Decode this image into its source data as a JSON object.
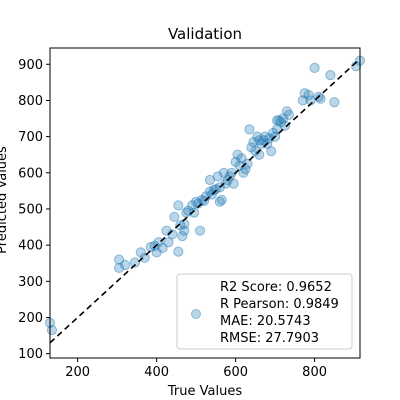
{
  "chart_data": {
    "type": "scatter",
    "title": "Validation",
    "xlabel": "True Values",
    "ylabel": "Predicted Values",
    "xlim": [
      130,
      915
    ],
    "ylim": [
      88,
      945
    ],
    "xticks": [
      200,
      400,
      600,
      800
    ],
    "yticks": [
      100,
      200,
      300,
      400,
      500,
      600,
      700,
      800,
      900
    ],
    "grid": false,
    "legend_position": "lower-right",
    "legend_lines": [
      "R2 Score: 0.9652",
      "R Pearson: 0.9849",
      "MAE: 20.5743",
      "RMSE: 27.7903"
    ],
    "point_color": "#1f77b4",
    "line_color": "#000000",
    "reference_line": {
      "label": "y = x",
      "style": "dashed"
    },
    "points": [
      [
        130,
        185
      ],
      [
        135,
        165
      ],
      [
        305,
        360
      ],
      [
        305,
        337
      ],
      [
        320,
        345
      ],
      [
        345,
        352
      ],
      [
        360,
        380
      ],
      [
        370,
        365
      ],
      [
        385,
        395
      ],
      [
        395,
        398
      ],
      [
        400,
        380
      ],
      [
        405,
        408
      ],
      [
        415,
        392
      ],
      [
        425,
        440
      ],
      [
        430,
        408
      ],
      [
        440,
        430
      ],
      [
        445,
        478
      ],
      [
        455,
        382
      ],
      [
        455,
        510
      ],
      [
        460,
        455
      ],
      [
        465,
        425
      ],
      [
        470,
        440
      ],
      [
        470,
        458
      ],
      [
        475,
        490
      ],
      [
        480,
        495
      ],
      [
        490,
        510
      ],
      [
        495,
        490
      ],
      [
        500,
        520
      ],
      [
        505,
        515
      ],
      [
        510,
        440
      ],
      [
        515,
        525
      ],
      [
        520,
        522
      ],
      [
        525,
        535
      ],
      [
        535,
        548
      ],
      [
        535,
        580
      ],
      [
        540,
        540
      ],
      [
        545,
        552
      ],
      [
        550,
        555
      ],
      [
        555,
        590
      ],
      [
        560,
        560
      ],
      [
        560,
        520
      ],
      [
        565,
        525
      ],
      [
        570,
        600
      ],
      [
        575,
        570
      ],
      [
        580,
        580
      ],
      [
        585,
        590
      ],
      [
        590,
        600
      ],
      [
        595,
        570
      ],
      [
        600,
        630
      ],
      [
        605,
        650
      ],
      [
        610,
        620
      ],
      [
        615,
        640
      ],
      [
        620,
        600
      ],
      [
        625,
        610
      ],
      [
        630,
        625
      ],
      [
        635,
        720
      ],
      [
        640,
        670
      ],
      [
        645,
        685
      ],
      [
        650,
        660
      ],
      [
        655,
        700
      ],
      [
        660,
        690
      ],
      [
        660,
        650
      ],
      [
        665,
        680
      ],
      [
        670,
        690
      ],
      [
        675,
        700
      ],
      [
        680,
        680
      ],
      [
        685,
        695
      ],
      [
        690,
        660
      ],
      [
        695,
        710
      ],
      [
        700,
        700
      ],
      [
        705,
        720
      ],
      [
        705,
        745
      ],
      [
        710,
        745
      ],
      [
        715,
        740
      ],
      [
        720,
        750
      ],
      [
        725,
        730
      ],
      [
        730,
        770
      ],
      [
        735,
        760
      ],
      [
        770,
        800
      ],
      [
        775,
        820
      ],
      [
        785,
        815
      ],
      [
        790,
        800
      ],
      [
        800,
        890
      ],
      [
        810,
        810
      ],
      [
        815,
        805
      ],
      [
        840,
        870
      ],
      [
        850,
        795
      ],
      [
        905,
        895
      ],
      [
        915,
        910
      ]
    ]
  }
}
